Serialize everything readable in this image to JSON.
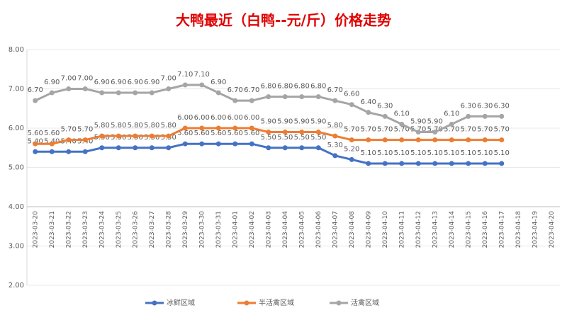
{
  "chart_data": {
    "type": "line",
    "title": "大鸭最近（白鸭--元/斤）价格走势",
    "categories": [
      "2023-03-20",
      "2023-03-21",
      "2023-03-22",
      "2023-03-23",
      "2023-03-24",
      "2023-03-25",
      "2023-03-26",
      "2023-03-27",
      "2023-03-28",
      "2023-03-29",
      "2023-03-30",
      "2023-03-31",
      "2023-04-01",
      "2023-04-02",
      "2023-04-03",
      "2023-04-04",
      "2023-04-05",
      "2023-04-06",
      "2023-04-07",
      "2023-04-08",
      "2023-04-09",
      "2023-04-10",
      "2023-04-11",
      "2023-04-12",
      "2023-04-13",
      "2023-04-14",
      "2023-04-15",
      "2023-04-16",
      "2023-04-17",
      "2023-04-18",
      "2023-04-19",
      "2023-04-20"
    ],
    "series": [
      {
        "name": "冰鲜区域",
        "color": "#4472c4",
        "values": [
          5.4,
          5.4,
          5.4,
          5.4,
          5.5,
          5.5,
          5.5,
          5.5,
          5.5,
          5.6,
          5.6,
          5.6,
          5.6,
          5.6,
          5.5,
          5.5,
          5.5,
          5.5,
          5.3,
          5.2,
          5.1,
          5.1,
          5.1,
          5.1,
          5.1,
          5.1,
          5.1,
          5.1,
          5.1,
          null,
          null,
          null
        ],
        "value_labels": [
          "5.40",
          "5.40",
          "5.40",
          "5.40",
          "5.50",
          "5.50",
          "5.50",
          "5.50",
          "5.50",
          "5.60",
          "5.60",
          "5.60",
          "5.60",
          "5.60",
          "5.50",
          "5.50",
          "5.50",
          "5.50",
          "5.30",
          "5.20",
          "5.10",
          "5.10",
          "5.10",
          "5.10",
          "5.10",
          "5.10",
          "5.10",
          "5.10",
          "5.10",
          null,
          null,
          null
        ]
      },
      {
        "name": "半活禽区域",
        "color": "#ed7d31",
        "values": [
          5.6,
          5.6,
          5.7,
          5.7,
          5.8,
          5.8,
          5.8,
          5.8,
          5.8,
          6.0,
          6.0,
          6.0,
          6.0,
          6.0,
          5.9,
          5.9,
          5.9,
          5.9,
          5.8,
          5.7,
          5.7,
          5.7,
          5.7,
          5.7,
          5.7,
          5.7,
          5.7,
          5.7,
          5.7,
          null,
          null,
          null
        ],
        "value_labels": [
          "5.60",
          "5.60",
          "5.70",
          "5.70",
          "5.80",
          "5.80",
          "5.80",
          "5.80",
          "5.80",
          "6.00",
          "6.00",
          "6.00",
          "6.00",
          "6.00",
          "5.90",
          "5.90",
          "5.90",
          "5.90",
          "5.80",
          "5.70",
          "5.70",
          "5.70",
          "5.70",
          "5.70",
          "5.70",
          "5.70",
          "5.70",
          "5.70",
          "5.70",
          null,
          null,
          null
        ]
      },
      {
        "name": "活禽区域",
        "color": "#a5a5a5",
        "values": [
          6.7,
          6.9,
          7.0,
          7.0,
          6.9,
          6.9,
          6.9,
          6.9,
          7.0,
          7.1,
          7.1,
          6.9,
          6.7,
          6.7,
          6.8,
          6.8,
          6.8,
          6.8,
          6.7,
          6.6,
          6.4,
          6.3,
          6.1,
          5.9,
          5.9,
          6.1,
          6.3,
          6.3,
          6.3,
          null,
          null,
          null
        ],
        "value_labels": [
          "6.70",
          "6.90",
          "7.00",
          "7.00",
          "6.90",
          "6.90",
          "6.90",
          "6.90",
          "7.00",
          "7.10",
          "7.10",
          "6.90",
          "6.70",
          "6.70",
          "6.80",
          "6.80",
          "6.80",
          "6.80",
          "6.70",
          "6.60",
          "6.40",
          "6.30",
          "6.10",
          "5.90",
          "5.90",
          "6.10",
          "6.30",
          "6.30",
          "6.30",
          null,
          null,
          null
        ]
      }
    ],
    "ylim": [
      2,
      8
    ],
    "yticks": [
      {
        "value": 2,
        "label": "2.00"
      },
      {
        "value": 3,
        "label": "3.00"
      },
      {
        "value": 4,
        "label": "4.00"
      },
      {
        "value": 5,
        "label": "5.00"
      },
      {
        "value": 6,
        "label": "6.00"
      },
      {
        "value": 7,
        "label": "7.00"
      },
      {
        "value": 8,
        "label": "8.00"
      }
    ],
    "legend": "bottom"
  }
}
